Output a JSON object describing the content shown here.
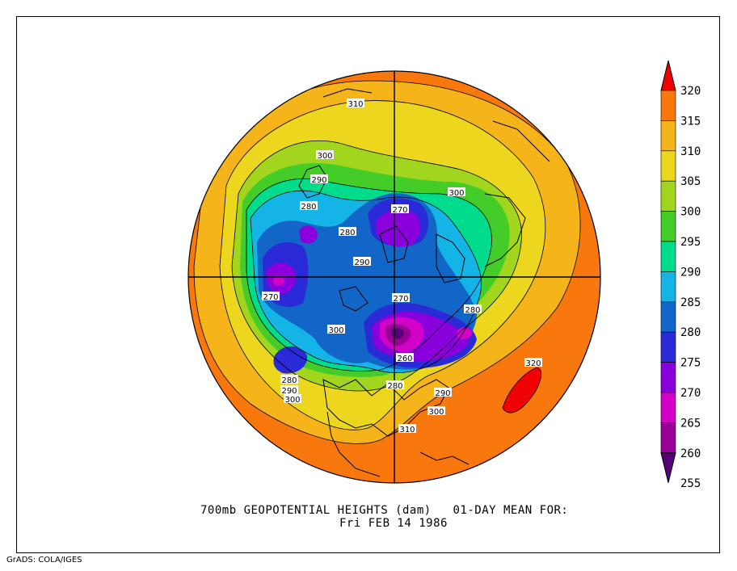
{
  "title": "700mb GEOPOTENTIAL HEIGHTS (dam)   01-DAY MEAN FOR:",
  "subtitle": "Fri FEB 14 1986",
  "footer": "GrADS: COLA/IGES",
  "colorbar": {
    "levels": [
      "255",
      "260",
      "265",
      "270",
      "275",
      "280",
      "285",
      "290",
      "295",
      "300",
      "305",
      "310",
      "315",
      "320"
    ],
    "colors": [
      "#560078",
      "#9b0096",
      "#d300c8",
      "#8a00dc",
      "#2a2ad6",
      "#1166c8",
      "#14b4e6",
      "#00dc8c",
      "#44cc28",
      "#a2d61e",
      "#ecd61e",
      "#f4b41a",
      "#f8780e",
      "#f00000"
    ]
  },
  "contour_labels": [
    {
      "id": "310-top",
      "text": "310"
    },
    {
      "id": "300-ne",
      "text": "300"
    },
    {
      "id": "300-w",
      "text": "300"
    },
    {
      "id": "290-w",
      "text": "290"
    },
    {
      "id": "280-w",
      "text": "280"
    },
    {
      "id": "270-top",
      "text": "270"
    },
    {
      "id": "280-mid",
      "text": "280"
    },
    {
      "id": "290-mid",
      "text": "290"
    },
    {
      "id": "270-left",
      "text": "270"
    },
    {
      "id": "300-mid",
      "text": "300"
    },
    {
      "id": "270-ctr",
      "text": "270"
    },
    {
      "id": "280-right",
      "text": "280"
    },
    {
      "id": "260-ctr",
      "text": "260"
    },
    {
      "id": "320-se",
      "text": "320"
    },
    {
      "id": "280-bl",
      "text": "280"
    },
    {
      "id": "290-bl",
      "text": "290"
    },
    {
      "id": "300-bl",
      "text": "300"
    },
    {
      "id": "280-bot",
      "text": "280"
    },
    {
      "id": "290-bot",
      "text": "290"
    },
    {
      "id": "300-bot",
      "text": "300"
    },
    {
      "id": "310-bot",
      "text": "310"
    }
  ]
}
